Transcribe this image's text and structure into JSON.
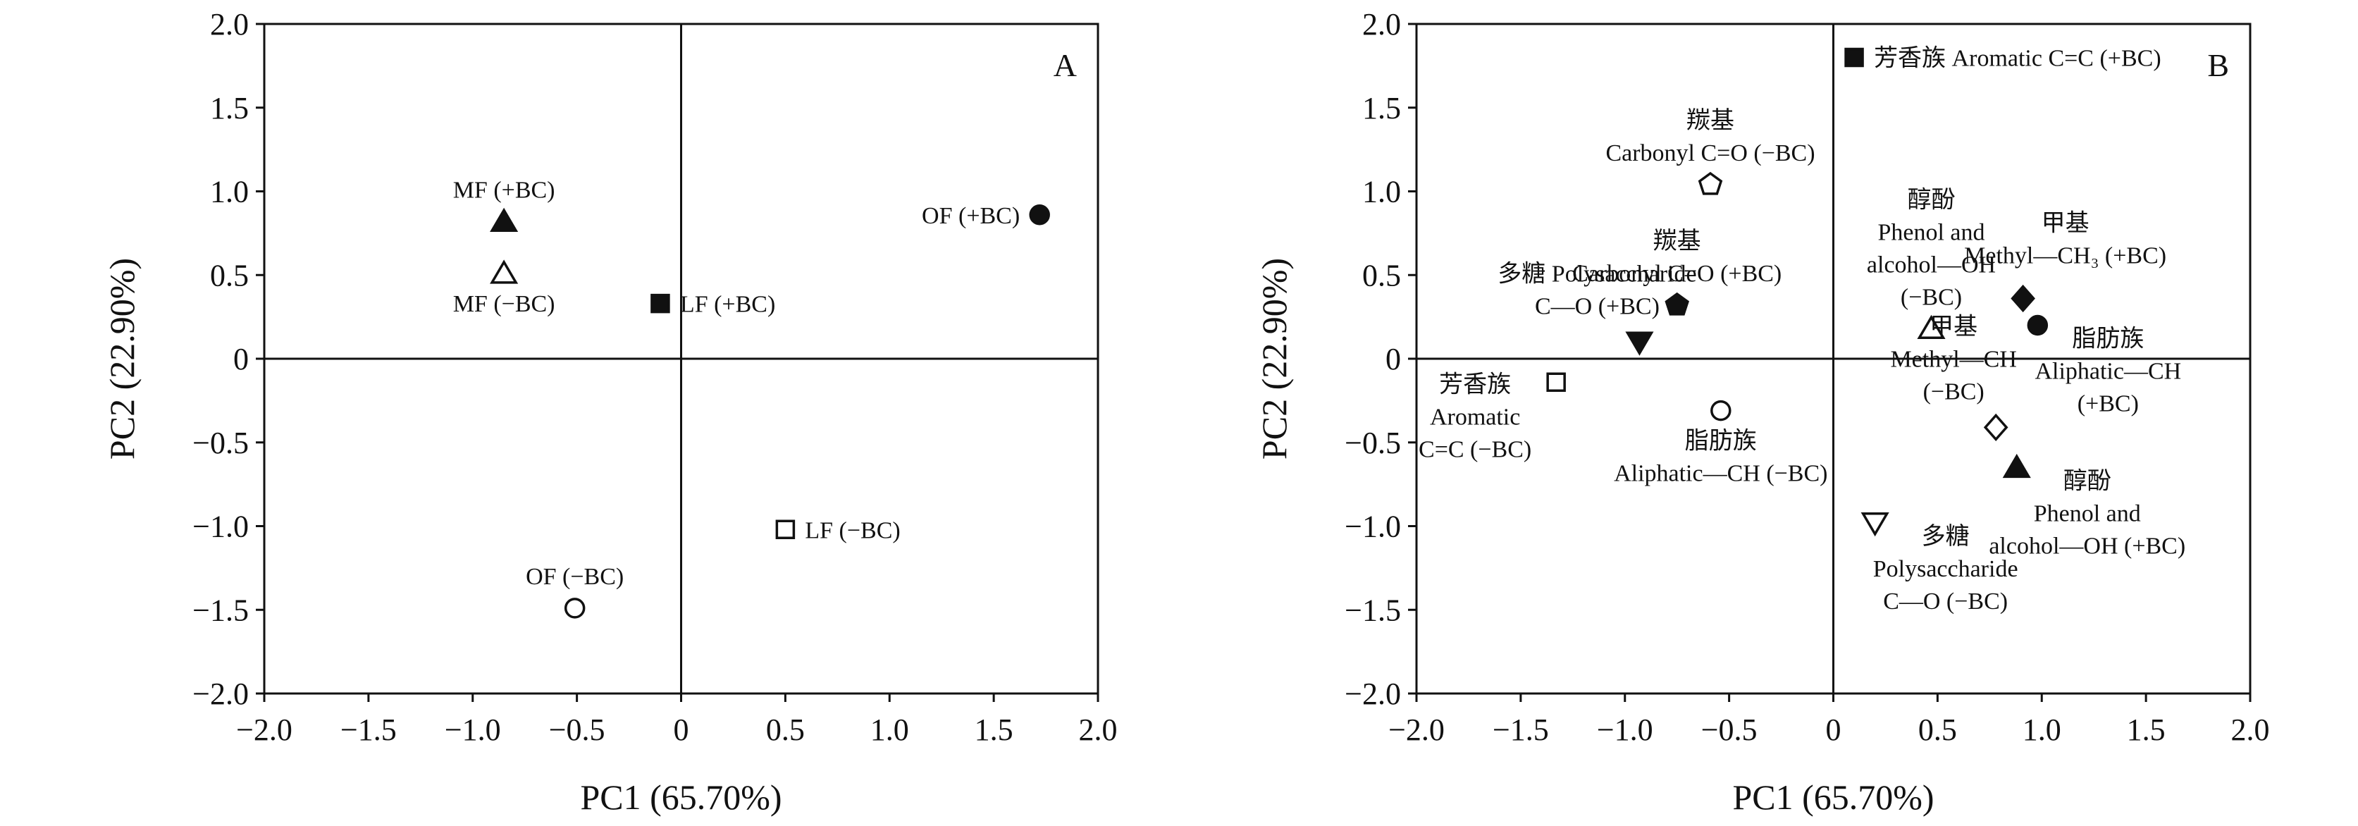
{
  "chart_data": [
    {
      "type": "scatter",
      "panel_label": "A",
      "xlabel": "PC1 (65.70%)",
      "ylabel": "PC2 (22.90%)",
      "xlim": [
        -2.0,
        2.0
      ],
      "ylim": [
        -2.0,
        2.0
      ],
      "xticks": [
        "−2.0",
        "−1.5",
        "−1.0",
        "−0.5",
        "0",
        "0.5",
        "1.0",
        "1.5",
        "2.0"
      ],
      "yticks": [
        "2.0",
        "1.5",
        "1.0",
        "0.5",
        "0",
        "−0.5",
        "−1.0",
        "−1.5",
        "−2.0"
      ],
      "zero_lines": true,
      "points": [
        {
          "x": -0.85,
          "y": 0.82,
          "marker": "triangle-up-filled",
          "label": "MF (+BC)",
          "label_pos": "above"
        },
        {
          "x": -0.85,
          "y": 0.51,
          "marker": "triangle-up-open",
          "label": "MF (−BC)",
          "label_pos": "below"
        },
        {
          "x": -0.1,
          "y": 0.33,
          "marker": "square-filled",
          "label": "LF (+BC)",
          "label_pos": "right"
        },
        {
          "x": 1.72,
          "y": 0.86,
          "marker": "circle-filled",
          "label": "OF (+BC)",
          "label_pos": "left"
        },
        {
          "x": 0.5,
          "y": -1.02,
          "marker": "square-open",
          "label": "LF (−BC)",
          "label_pos": "right"
        },
        {
          "x": -0.51,
          "y": -1.49,
          "marker": "circle-open",
          "label": "OF (−BC)",
          "label_pos": "above"
        }
      ]
    },
    {
      "type": "scatter",
      "panel_label": "B",
      "xlabel": "PC1 (65.70%)",
      "ylabel": "PC2 (22.90%)",
      "xlim": [
        -2.0,
        2.0
      ],
      "ylim": [
        -2.0,
        2.0
      ],
      "xticks": [
        "−2.0",
        "−1.5",
        "−1.0",
        "−0.5",
        "0",
        "0.5",
        "1.0",
        "1.5",
        "2.0"
      ],
      "yticks": [
        "2.0",
        "1.5",
        "1.0",
        "0.5",
        "0",
        "−0.5",
        "−1.0",
        "−1.5",
        "−2.0"
      ],
      "zero_lines": true,
      "points": [
        {
          "x": 0.1,
          "y": 1.8,
          "marker": "square-filled",
          "label": [
            "芳香族 Aromatic C=C (+BC)"
          ],
          "label_pos": "right"
        },
        {
          "x": -0.59,
          "y": 1.04,
          "marker": "pentagon-open",
          "label": [
            "羰基",
            "Carbonyl C=O (−BC)"
          ],
          "label_pos": "above"
        },
        {
          "x": -0.75,
          "y": 0.32,
          "marker": "pentagon-filled",
          "label": [
            "羰基",
            "Carbonyl C=O (+BC)"
          ],
          "label_pos": "above"
        },
        {
          "x": -0.93,
          "y": 0.1,
          "marker": "triangle-down-filled",
          "label": [
            "多糖 Polysaccharide",
            "C—O (+BC)"
          ],
          "label_pos": "above-left"
        },
        {
          "x": 0.47,
          "y": 0.18,
          "marker": "triangle-up-open",
          "label": [
            "醇酚",
            "Phenol and",
            "alcohol—OH",
            "(−BC)"
          ],
          "label_pos": "above"
        },
        {
          "x": 0.91,
          "y": 0.36,
          "marker": "diamond-filled",
          "label": [
            "甲基",
            "Methyl—CH₃ (+BC)"
          ],
          "label_pos": "above-right"
        },
        {
          "x": 0.98,
          "y": 0.2,
          "marker": "circle-filled",
          "label": [
            "脂肪族",
            "Aliphatic—CH",
            "(+BC)"
          ],
          "label_pos": "right-below"
        },
        {
          "x": -1.33,
          "y": -0.14,
          "marker": "square-open",
          "label": [
            "芳香族",
            "Aromatic",
            "C=C (−BC)"
          ],
          "label_pos": "below-left"
        },
        {
          "x": -0.54,
          "y": -0.31,
          "marker": "circle-open",
          "label": [
            "脂肪族",
            "Aliphatic—CH (−BC)"
          ],
          "label_pos": "below"
        },
        {
          "x": 0.78,
          "y": -0.41,
          "marker": "diamond-open",
          "label": [
            "甲基",
            "Methyl—CH",
            "(−BC)"
          ],
          "label_pos": "above-left"
        },
        {
          "x": 0.88,
          "y": -0.65,
          "marker": "triangle-up-filled",
          "label": [
            "醇酚",
            "Phenol and",
            "alcohol—OH (+BC)"
          ],
          "label_pos": "right-below"
        },
        {
          "x": 0.2,
          "y": -0.98,
          "marker": "triangle-down-open",
          "label": [
            "多糖",
            "Polysaccharide",
            "C—O (−BC)"
          ],
          "label_pos": "right-below"
        }
      ]
    }
  ]
}
